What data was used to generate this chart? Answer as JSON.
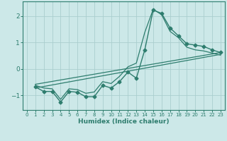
{
  "xlabel": "Humidex (Indice chaleur)",
  "bg_color": "#cce8e8",
  "line_color": "#2e7d6e",
  "grid_color": "#aacece",
  "xlim": [
    -0.5,
    23.5
  ],
  "ylim": [
    -1.55,
    2.55
  ],
  "xticks": [
    0,
    1,
    2,
    3,
    4,
    5,
    6,
    7,
    8,
    9,
    10,
    11,
    12,
    13,
    14,
    15,
    16,
    17,
    18,
    19,
    20,
    21,
    22,
    23
  ],
  "yticks": [
    -1,
    0,
    1,
    2
  ],
  "series_marker": {
    "x": [
      1,
      2,
      3,
      4,
      5,
      6,
      7,
      8,
      9,
      10,
      11,
      12,
      13,
      14,
      15,
      16,
      17,
      18,
      19,
      20,
      21,
      22,
      23
    ],
    "y": [
      -0.68,
      -0.85,
      -0.85,
      -1.25,
      -0.85,
      -0.88,
      -1.05,
      -1.05,
      -0.62,
      -0.72,
      -0.48,
      -0.12,
      -0.35,
      0.72,
      2.22,
      2.1,
      1.55,
      1.25,
      0.95,
      0.9,
      0.85,
      0.72,
      0.62
    ]
  },
  "series_smooth": {
    "x": [
      1,
      2,
      3,
      4,
      5,
      6,
      7,
      8,
      9,
      10,
      11,
      12,
      13,
      14,
      15,
      16,
      17,
      18,
      19,
      20,
      21,
      22,
      23
    ],
    "y": [
      -0.62,
      -0.72,
      -0.75,
      -1.15,
      -0.75,
      -0.78,
      -0.92,
      -0.87,
      -0.48,
      -0.55,
      -0.28,
      0.08,
      0.22,
      1.38,
      2.25,
      2.05,
      1.42,
      1.18,
      0.82,
      0.72,
      0.68,
      0.6,
      0.52
    ]
  },
  "line1": {
    "x": [
      1,
      23
    ],
    "y": [
      -0.72,
      0.55
    ]
  },
  "line2": {
    "x": [
      1,
      23
    ],
    "y": [
      -0.58,
      0.62
    ]
  }
}
